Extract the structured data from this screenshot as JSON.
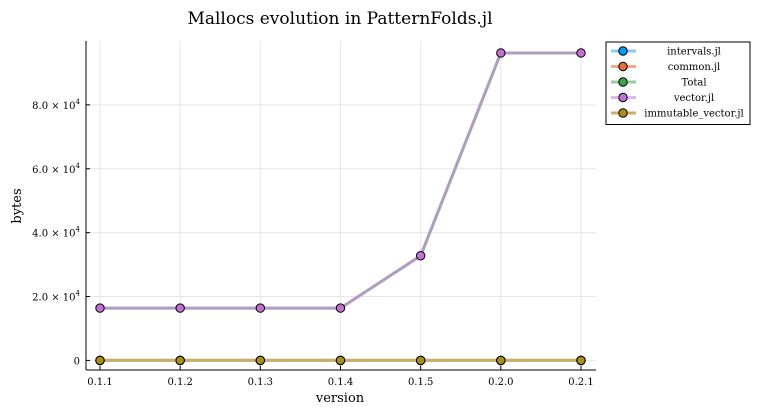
{
  "chart_data": {
    "type": "line",
    "title": "Mallocs evolution in PatternFolds.jl",
    "xlabel": "version",
    "ylabel": "bytes",
    "categories": [
      "0.1.1",
      "0.1.2",
      "0.1.3",
      "0.1.4",
      "0.1.5",
      "0.2.0",
      "0.2.1"
    ],
    "ylim": [
      -3000,
      100000
    ],
    "yticks": [
      {
        "value": 0,
        "mant": "0",
        "exp": ""
      },
      {
        "value": 20000,
        "mant": "2.0 × 10",
        "exp": "4"
      },
      {
        "value": 40000,
        "mant": "4.0 × 10",
        "exp": "4"
      },
      {
        "value": 60000,
        "mant": "6.0 × 10",
        "exp": "4"
      },
      {
        "value": 80000,
        "mant": "8.0 × 10",
        "exp": "4"
      }
    ],
    "grid": true,
    "legend_position": "outside top-right",
    "series": [
      {
        "name": "intervals.jl",
        "line_color": "#8ecbf0",
        "marker_color": "#009af9",
        "values": [
          0,
          0,
          0,
          0,
          0,
          0,
          0
        ]
      },
      {
        "name": "common.jl",
        "line_color": "#f4a58a",
        "marker_color": "#e26f46",
        "values": [
          0,
          0,
          0,
          0,
          0,
          0,
          0
        ]
      },
      {
        "name": "Total",
        "line_color": "#96cf9e",
        "marker_color": "#3da44d",
        "values": [
          0,
          0,
          0,
          0,
          0,
          0,
          0
        ]
      },
      {
        "name": "vector.jl",
        "line_color": "#e2b6ea",
        "marker_color": "#c271d2",
        "values": [
          16384,
          16384,
          16384,
          16384,
          32768,
          96256,
          96256
        ]
      },
      {
        "name": "immutable_vector.jl",
        "line_color": "#c8b06a",
        "marker_color": "#ac8d18",
        "values": [
          0,
          0,
          0,
          0,
          0,
          0,
          0
        ]
      }
    ]
  }
}
